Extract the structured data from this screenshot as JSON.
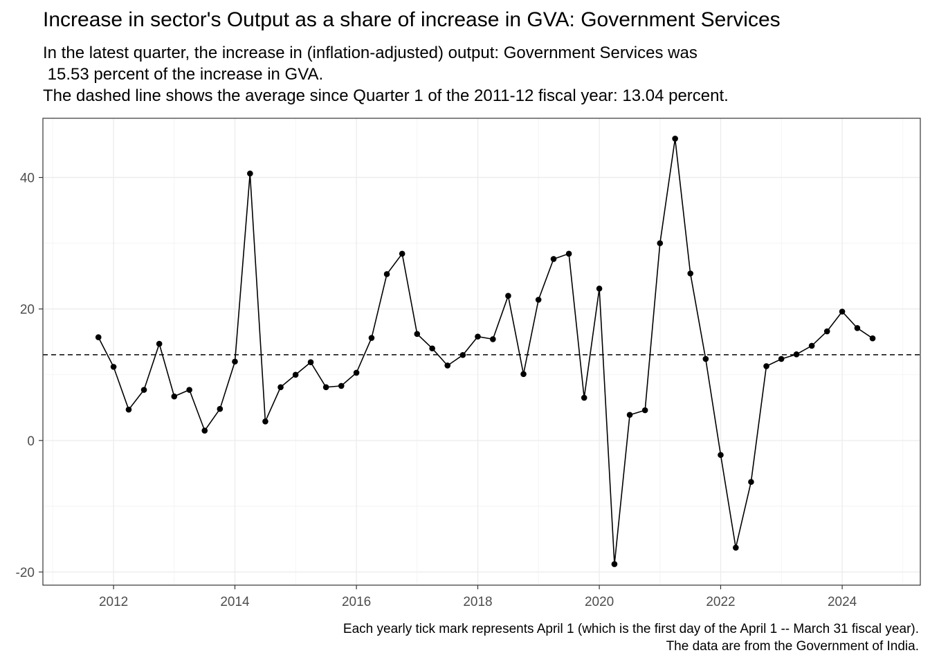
{
  "chart_data": {
    "type": "line",
    "title": "Increase in sector's Output as a share of increase in GVA: Government Services",
    "subtitle_lines": [
      "In the latest quarter, the increase in (inflation-adjusted) output: Government Services was",
      " 15.53 percent of the increase in GVA.",
      "The dashed line shows the average since Quarter 1 of the 2011-12 fiscal year: 13.04 percent."
    ],
    "caption_lines": [
      "Each yearly tick mark represents April 1 (which is the first day of the April 1 -- March 31 fiscal year).",
      "The data are from the Government of India."
    ],
    "xlabel": "",
    "ylabel": "",
    "x_tick_labels": [
      "2012",
      "2014",
      "2016",
      "2018",
      "2020",
      "2022",
      "2024"
    ],
    "y_tick_labels": [
      "-20",
      "0",
      "20",
      "40"
    ],
    "xlim": [
      "2011-02-01",
      "2025-07-15"
    ],
    "ylim": [
      -22,
      49
    ],
    "grid": true,
    "average_line": 13.04,
    "series": [
      {
        "x": [
          "2012-01-01",
          "2012-04-01",
          "2012-07-01",
          "2012-10-01",
          "2013-01-01",
          "2013-04-01",
          "2013-07-01",
          "2013-10-01",
          "2014-01-01",
          "2014-04-01",
          "2014-07-01",
          "2014-10-01",
          "2015-01-01",
          "2015-04-01",
          "2015-07-01",
          "2015-10-01",
          "2016-01-01",
          "2016-04-01",
          "2016-07-01",
          "2016-10-01",
          "2017-01-01",
          "2017-04-01",
          "2017-07-01",
          "2017-10-01",
          "2018-01-01",
          "2018-04-01",
          "2018-07-01",
          "2018-10-01",
          "2019-01-01",
          "2019-04-01",
          "2019-07-01",
          "2019-10-01",
          "2020-01-01",
          "2020-04-01",
          "2020-07-01",
          "2020-10-01",
          "2021-01-01",
          "2021-04-01",
          "2021-07-01",
          "2021-10-01",
          "2022-01-01",
          "2022-04-01",
          "2022-07-01",
          "2022-10-01",
          "2023-01-01",
          "2023-04-01",
          "2023-07-01",
          "2023-10-01",
          "2024-01-01",
          "2024-04-01",
          "2024-07-01",
          "2024-10-01"
        ],
        "values": [
          15.7,
          11.2,
          4.7,
          7.7,
          14.7,
          6.7,
          7.7,
          1.5,
          4.8,
          12.0,
          40.6,
          2.9,
          8.1,
          10.0,
          11.9,
          8.1,
          8.3,
          10.3,
          15.6,
          25.3,
          28.4,
          16.2,
          14.0,
          11.4,
          13.0,
          15.8,
          15.4,
          22.0,
          10.1,
          21.4,
          27.6,
          28.4,
          6.5,
          23.1,
          -18.8,
          3.9,
          4.6,
          30.0,
          45.9,
          25.4,
          12.4,
          -2.2,
          -16.3,
          -6.3,
          11.3,
          12.4,
          13.1,
          14.4,
          16.6,
          19.6,
          17.1,
          15.53
        ]
      }
    ]
  }
}
